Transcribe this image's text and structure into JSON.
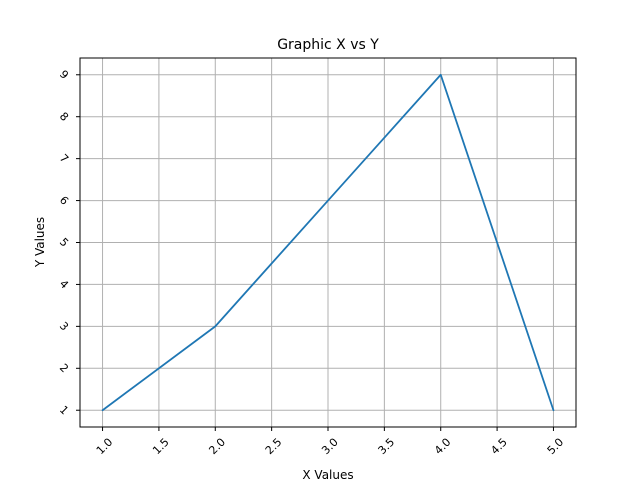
{
  "chart_data": {
    "type": "line",
    "title": "Graphic X vs Y",
    "xlabel": "X Values",
    "ylabel": "Y Values",
    "x": [
      1,
      2,
      3,
      4,
      5
    ],
    "series": [
      {
        "values": [
          1,
          3,
          6,
          9,
          1
        ],
        "color": "#1f77b4"
      }
    ],
    "xlim": [
      0.8,
      5.2
    ],
    "ylim": [
      0.6,
      9.4
    ],
    "xticks": [
      "1.0",
      "1.5",
      "2.0",
      "2.5",
      "3.0",
      "3.5",
      "4.0",
      "4.5",
      "5.0"
    ],
    "yticks": [
      "1",
      "2",
      "3",
      "4",
      "5",
      "6",
      "7",
      "8",
      "9"
    ],
    "tick_rotation_deg": 45,
    "grid": true,
    "grid_color": "#b0b0b0",
    "legend": false
  }
}
